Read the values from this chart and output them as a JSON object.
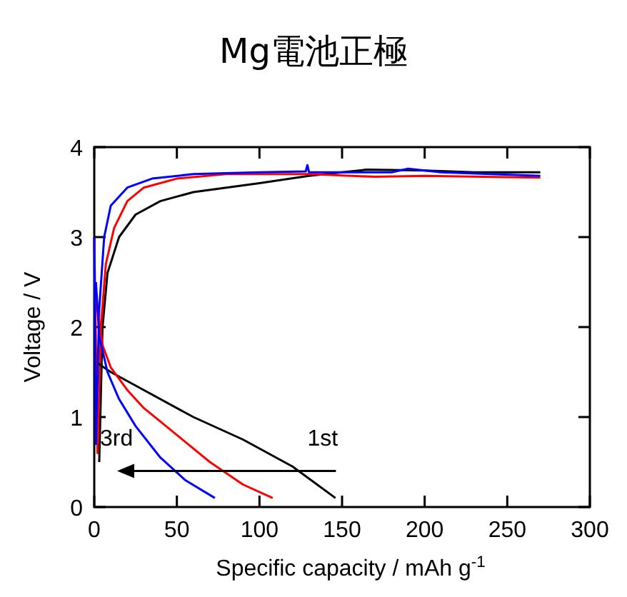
{
  "chart_data": {
    "type": "line",
    "title": "Mg電池正極",
    "xlabel": "Specific capacity / mAh g$^{-1}$",
    "ylabel": "Voltage / V",
    "xlim": [
      0,
      300
    ],
    "xticks": [
      0,
      50,
      100,
      150,
      200,
      250,
      300
    ],
    "ylim": [
      0,
      4
    ],
    "yticks": [
      0,
      1,
      2,
      3,
      4
    ],
    "grid": false,
    "marker": "none",
    "line_style": "solid",
    "annotations": [
      "1st",
      "3rd"
    ],
    "series": [
      {
        "color": "#000000",
        "x": [
          3,
          5,
          8,
          15,
          25,
          40,
          60,
          100,
          130,
          150,
          165,
          200,
          230,
          270
        ],
        "values": [
          0.5,
          2.0,
          2.6,
          3.0,
          3.25,
          3.4,
          3.5,
          3.6,
          3.68,
          3.72,
          3.75,
          3.74,
          3.72,
          3.72
        ]
      },
      {
        "color": "#ff0000",
        "x": [
          0,
          2,
          4,
          7,
          12,
          20,
          30,
          50,
          80,
          130,
          170,
          200,
          270
        ],
        "values": [
          3.0,
          0.6,
          2.0,
          2.7,
          3.1,
          3.4,
          3.55,
          3.65,
          3.7,
          3.7,
          3.67,
          3.68,
          3.66
        ]
      },
      {
        "color": "#0000ff",
        "x": [
          0,
          1,
          3,
          6,
          10,
          20,
          35,
          60,
          100,
          128,
          129,
          130,
          180,
          190,
          210,
          270
        ],
        "values": [
          3.0,
          0.7,
          2.2,
          3.0,
          3.35,
          3.55,
          3.65,
          3.7,
          3.72,
          3.73,
          3.8,
          3.72,
          3.72,
          3.76,
          3.72,
          3.68
        ]
      },
      {
        "color": "#000000",
        "x": [
          2,
          10,
          30,
          60,
          90,
          120,
          146
        ],
        "values": [
          1.6,
          1.5,
          1.3,
          1.0,
          0.75,
          0.45,
          0.1
        ]
      },
      {
        "color": "#ff0000",
        "x": [
          2,
          5,
          10,
          20,
          30,
          50,
          70,
          90,
          108
        ],
        "values": [
          2.2,
          1.8,
          1.55,
          1.3,
          1.1,
          0.8,
          0.5,
          0.25,
          0.1
        ]
      },
      {
        "color": "#0000ff",
        "x": [
          1,
          3,
          8,
          15,
          25,
          40,
          55,
          73
        ],
        "values": [
          2.5,
          1.9,
          1.5,
          1.2,
          0.9,
          0.55,
          0.3,
          0.1
        ]
      }
    ]
  }
}
